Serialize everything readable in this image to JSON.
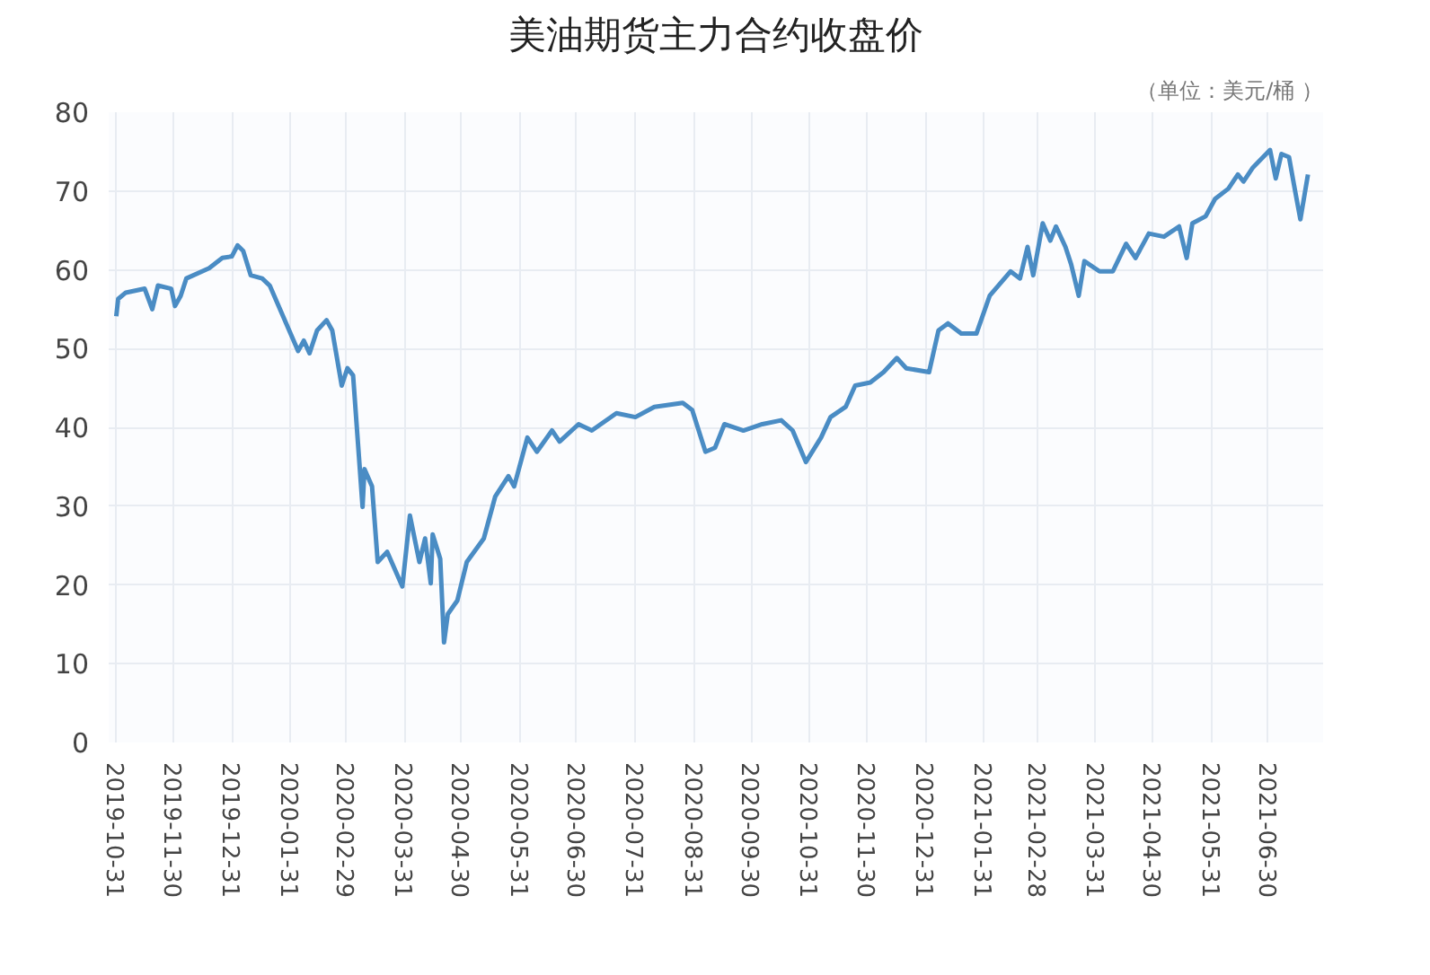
{
  "chart_data": {
    "type": "line",
    "title": "美油期货主力合约收盘价",
    "annotations": [
      "（单位：美元/桶 ）"
    ],
    "x": [
      "2019-10-31",
      "2019-11-01",
      "2019-11-05",
      "2019-11-15",
      "2019-11-19",
      "2019-11-22",
      "2019-11-29",
      "2019-12-01",
      "2019-12-04",
      "2019-12-07",
      "2019-12-19",
      "2019-12-26",
      "2019-12-31",
      "2020-01-03",
      "2020-01-06",
      "2020-01-10",
      "2020-01-16",
      "2020-01-20",
      "2020-02-04",
      "2020-02-07",
      "2020-02-10",
      "2020-02-14",
      "2020-02-19",
      "2020-02-22",
      "2020-02-27",
      "2020-03-01",
      "2020-03-04",
      "2020-03-09",
      "2020-03-10",
      "2020-03-14",
      "2020-03-17",
      "2020-03-22",
      "2020-03-30",
      "2020-04-03",
      "2020-04-08",
      "2020-04-11",
      "2020-04-14",
      "2020-04-15",
      "2020-04-19",
      "2020-04-21",
      "2020-04-23",
      "2020-04-28",
      "2020-05-03",
      "2020-05-12",
      "2020-05-18",
      "2020-05-25",
      "2020-05-28",
      "2020-06-04",
      "2020-06-09",
      "2020-06-17",
      "2020-06-21",
      "2020-07-01",
      "2020-07-08",
      "2020-07-21",
      "2020-07-31",
      "2020-08-10",
      "2020-08-25",
      "2020-08-30",
      "2020-09-06",
      "2020-09-11",
      "2020-09-16",
      "2020-09-26",
      "2020-10-06",
      "2020-10-16",
      "2020-10-22",
      "2020-10-29",
      "2020-11-06",
      "2020-11-11",
      "2020-11-19",
      "2020-11-24",
      "2020-12-02",
      "2020-12-09",
      "2020-12-16",
      "2020-12-21",
      "2021-01-02",
      "2021-01-07",
      "2021-01-12",
      "2021-01-19",
      "2021-01-27",
      "2021-02-03",
      "2021-02-14",
      "2021-02-19",
      "2021-02-23",
      "2021-02-26",
      "2021-03-03",
      "2021-03-07",
      "2021-03-10",
      "2021-03-15",
      "2021-03-18",
      "2021-03-22",
      "2021-03-25",
      "2021-04-02",
      "2021-04-09",
      "2021-04-16",
      "2021-04-21",
      "2021-04-28",
      "2021-05-06",
      "2021-05-14",
      "2021-05-18",
      "2021-05-21",
      "2021-05-28",
      "2021-06-02",
      "2021-06-09",
      "2021-06-14",
      "2021-06-17",
      "2021-06-22",
      "2021-07-01",
      "2021-07-04",
      "2021-07-07",
      "2021-07-11",
      "2021-07-14",
      "2021-07-17",
      "2021-07-21"
    ],
    "series": [
      {
        "color": "#4a8cc4",
        "values": [
          54.1,
          56.3,
          57.1,
          57.6,
          55.0,
          58.0,
          57.6,
          55.4,
          56.7,
          58.9,
          60.2,
          61.5,
          61.7,
          63.1,
          62.4,
          59.3,
          58.9,
          58.0,
          49.7,
          51.0,
          49.4,
          52.3,
          53.6,
          52.3,
          45.3,
          47.5,
          46.6,
          29.9,
          34.7,
          32.5,
          22.9,
          24.2,
          19.8,
          28.8,
          22.9,
          25.9,
          20.2,
          26.4,
          23.3,
          12.7,
          16.3,
          18.0,
          22.9,
          25.9,
          31.2,
          33.8,
          32.5,
          38.7,
          36.9,
          39.6,
          38.2,
          40.4,
          39.6,
          41.8,
          41.3,
          42.6,
          43.1,
          42.2,
          36.9,
          37.4,
          40.4,
          39.6,
          40.4,
          40.9,
          39.6,
          35.6,
          38.7,
          41.3,
          42.6,
          45.3,
          45.7,
          47.0,
          48.8,
          47.5,
          47.0,
          52.3,
          53.2,
          51.9,
          51.9,
          56.7,
          59.8,
          58.9,
          62.9,
          59.3,
          65.9,
          63.7,
          65.5,
          62.9,
          60.7,
          56.7,
          61.1,
          59.8,
          59.8,
          63.3,
          61.5,
          64.6,
          64.2,
          65.5,
          61.5,
          65.9,
          66.8,
          69.0,
          70.3,
          72.1,
          71.2,
          73.0,
          75.2,
          71.6,
          74.7,
          74.3,
          70.3,
          66.4,
          72.1
        ]
      }
    ],
    "xlim": [
      "2019-10-27",
      "2021-07-29"
    ],
    "xticks": [
      "2019-10-31",
      "2019-11-30",
      "2019-12-31",
      "2020-01-31",
      "2020-02-29",
      "2020-03-31",
      "2020-04-30",
      "2020-05-31",
      "2020-06-30",
      "2020-07-31",
      "2020-08-31",
      "2020-09-30",
      "2020-10-31",
      "2020-11-30",
      "2020-12-31",
      "2021-01-31",
      "2021-02-28",
      "2021-03-31",
      "2021-04-30",
      "2021-05-31",
      "2021-06-30"
    ],
    "ylim": [
      0,
      80
    ],
    "yticks": [
      0,
      10,
      20,
      30,
      40,
      50,
      60,
      70,
      80
    ],
    "grid": true
  }
}
